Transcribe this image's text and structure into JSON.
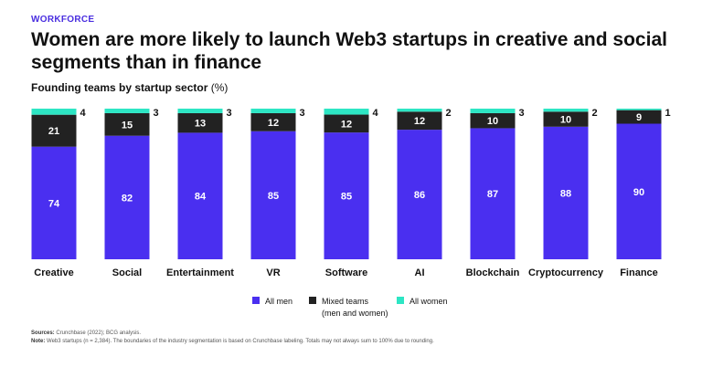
{
  "kicker": "WORKFORCE",
  "title": "Women are more likely to launch Web3 startups in creative and social segments than in finance",
  "subtitle": "Founding teams by startup sector",
  "subtitle_unit": "(%)",
  "colors": {
    "all_men": "#4a2ff0",
    "mixed": "#222222",
    "all_women": "#2de6c4"
  },
  "chart_data": {
    "type": "bar",
    "stacked": true,
    "normalized_percent": true,
    "categories": [
      "Creative",
      "Social",
      "Entertainment",
      "VR",
      "Software",
      "AI",
      "Blockchain",
      "Cryptocurrency",
      "Finance"
    ],
    "series": [
      {
        "name": "All men",
        "values": [
          74,
          82,
          84,
          85,
          85,
          86,
          87,
          88,
          90
        ]
      },
      {
        "name": "Mixed teams (men and women)",
        "values": [
          21,
          15,
          13,
          12,
          12,
          12,
          10,
          10,
          9
        ]
      },
      {
        "name": "All women",
        "values": [
          4,
          3,
          3,
          3,
          4,
          2,
          3,
          2,
          1
        ]
      }
    ],
    "ylim": [
      0,
      100
    ],
    "title": "Founding teams by startup sector (%)",
    "xlabel": "",
    "ylabel": ""
  },
  "legend": [
    {
      "label": "All men",
      "label2": ""
    },
    {
      "label": "Mixed teams",
      "label2": "(men and women)"
    },
    {
      "label": "All women",
      "label2": ""
    }
  ],
  "footer": {
    "sources_label": "Sources:",
    "sources_text": " Crunchbase (2022); BCG analysis.",
    "note_label": "Note:",
    "note_text": " Web3 startups (n = 2,384). The boundaries of the industry segmentation is based on Crunchbase labeling. Totals may not always sum to 100% due to rounding."
  }
}
